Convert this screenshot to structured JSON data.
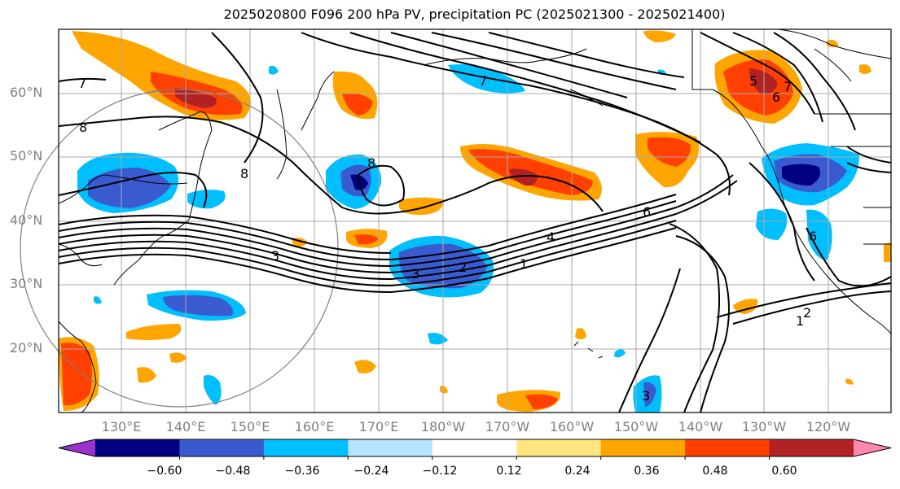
{
  "title": "2025020800 F096 200 hPa PV, precipitation PC (2025021300 - 2025021400)",
  "lat_labels": [
    "60°N",
    "50°N",
    "40°N",
    "30°N",
    "20°N"
  ],
  "lon_labels": [
    "130°E",
    "140°E",
    "150°E",
    "160°E",
    "170°E",
    "180°W",
    "170°W",
    "160°W",
    "150°W",
    "140°W",
    "130°W",
    "120°W"
  ],
  "contour_labels": [
    "7",
    "8",
    "8",
    "7",
    "5",
    "7",
    "6",
    "8",
    "6",
    "4",
    "3",
    "3",
    "2",
    "1",
    "2",
    "1",
    "6",
    "3"
  ],
  "colorbar": {
    "ticks": [
      "−0.60",
      "−0.48",
      "−0.36",
      "−0.24",
      "−0.12",
      "0.12",
      "0.24",
      "0.36",
      "0.48",
      "0.60"
    ],
    "colors": [
      "#9933cc",
      "#000080",
      "#3a5bd0",
      "#00bfff",
      "#b3e5ff",
      "#ffffff",
      "#ffe680",
      "#ffa500",
      "#ff4000",
      "#b22222",
      "#ff88b0"
    ]
  },
  "shading_colors": {
    "neg_deep": "#000080",
    "neg_mid": "#3a5bd0",
    "neg_light": "#00bfff",
    "neg_faint": "#b3e5ff",
    "pos_faint": "#ffe680",
    "pos_light": "#ffa500",
    "pos_mid": "#ff4000",
    "pos_deep": "#b22222"
  }
}
